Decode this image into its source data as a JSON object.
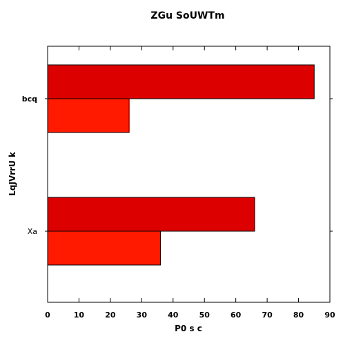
{
  "chart_data": {
    "type": "bar",
    "orientation": "horizontal",
    "title": "ZGu SoUWTm",
    "xlabel": "P0 s c",
    "ylabel": "LqJVrrU k",
    "categories": [
      "bcq",
      "Xa"
    ],
    "series": [
      {
        "values": [
          85,
          66
        ],
        "color": "#dd0000"
      },
      {
        "values": [
          26,
          36
        ],
        "color": "#ff1a00"
      }
    ],
    "xlim": [
      0,
      90
    ],
    "xticks": [
      0,
      10,
      20,
      30,
      40,
      50,
      60,
      70,
      80,
      90
    ],
    "grid": false
  }
}
